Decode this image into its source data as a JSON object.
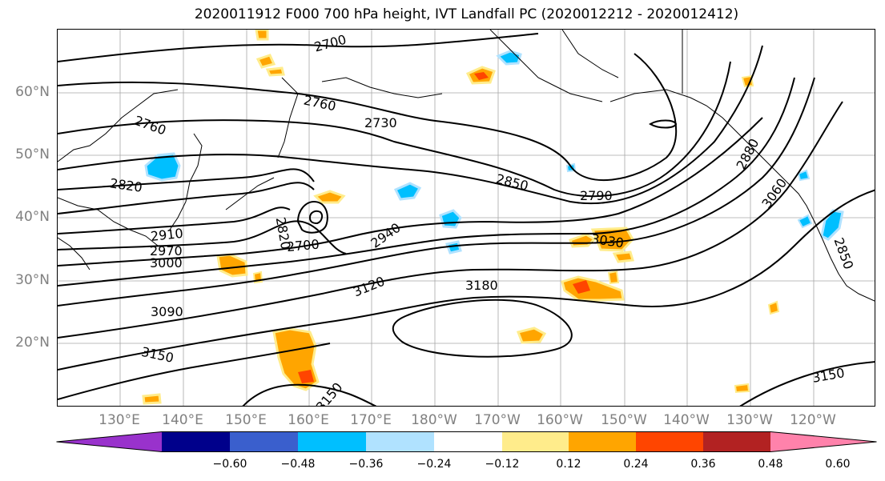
{
  "title": "2020011912 F000 700 hPa height, IVT Landfall PC (2020012212 - 2020012412)",
  "lat_labels": [
    "60°N",
    "50°N",
    "40°N",
    "30°N",
    "20°N"
  ],
  "lon_labels": [
    "130°E",
    "140°E",
    "150°E",
    "160°E",
    "170°E",
    "180°W",
    "170°W",
    "160°W",
    "150°W",
    "140°W",
    "130°W",
    "120°W"
  ],
  "contour_labels": [
    "2700",
    "2760",
    "2730",
    "2760",
    "2820",
    "2910",
    "2970",
    "3000",
    "3090",
    "3150",
    "2850",
    "2790",
    "2880",
    "3060",
    "2940",
    "3030",
    "3120",
    "3180",
    "3150",
    "2850",
    "2700",
    "2820",
    "3150"
  ],
  "colorbar": {
    "ticks": [
      "−0.60",
      "−0.48",
      "−0.36",
      "−0.24",
      "−0.12",
      "0.12",
      "0.24",
      "0.36",
      "0.48",
      "0.60"
    ],
    "colors": [
      "#9932CC",
      "#00008B",
      "#3A5FCD",
      "#00BFFF",
      "#B0E2FF",
      "#FFFFFF",
      "#FFEC8B",
      "#FFA500",
      "#FF4500",
      "#B22222",
      "#FF82AB"
    ]
  },
  "contour_color": "#000000",
  "grid_color": "#808080"
}
